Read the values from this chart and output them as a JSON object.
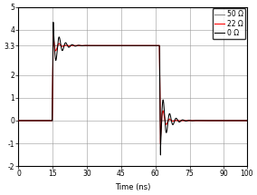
{
  "xlabel": "Time (ns)",
  "xlim": [
    0,
    100
  ],
  "ylim": [
    -2,
    5
  ],
  "yticks": [
    -2,
    -1,
    0,
    1,
    2,
    3.3,
    4,
    5
  ],
  "ytick_labels": [
    "-2",
    "-1",
    "0",
    "1",
    "2",
    "3.3",
    "4",
    "5"
  ],
  "xticks": [
    0,
    15,
    30,
    45,
    60,
    75,
    90,
    100
  ],
  "xtick_labels": [
    "0",
    "15",
    "30",
    "45",
    "60",
    "75",
    "90",
    "100"
  ],
  "legend_labels": [
    "0 Ω",
    "22 Ω",
    "50 Ω"
  ],
  "legend_colors": [
    "black",
    "red",
    "gray"
  ],
  "grid_color": "#999999",
  "background_color": "#ffffff",
  "t_rise": 15.0,
  "t_fall": 62.0,
  "v_high": 3.3,
  "v_low": 0.0,
  "rise_peak": 4.4,
  "fall_trough": -1.5,
  "ring_freq_0": 0.35,
  "ring_decay_0": 0.38,
  "ring_freq_22": 0.35,
  "ring_decay_22": 0.65,
  "edge_width": 0.25
}
